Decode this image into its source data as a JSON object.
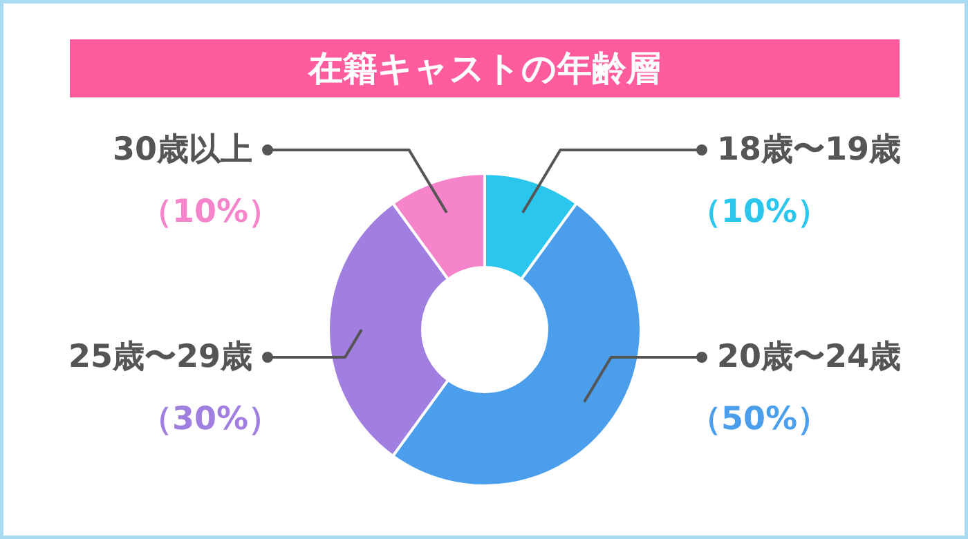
{
  "chart_data": {
    "type": "donut",
    "title": "在籍キャストの年齢層",
    "categories": [
      "18歳〜19歳",
      "20歳〜24歳",
      "25歳〜29歳",
      "30歳以上"
    ],
    "values": [
      10,
      50,
      30,
      10
    ],
    "colors": [
      "#2ac6ee",
      "#4a9eec",
      "#a07fe0",
      "#f684cb"
    ],
    "value_labels": [
      "（10%）",
      "（50%）",
      "（30%）",
      "（10%）"
    ],
    "legend": false
  }
}
